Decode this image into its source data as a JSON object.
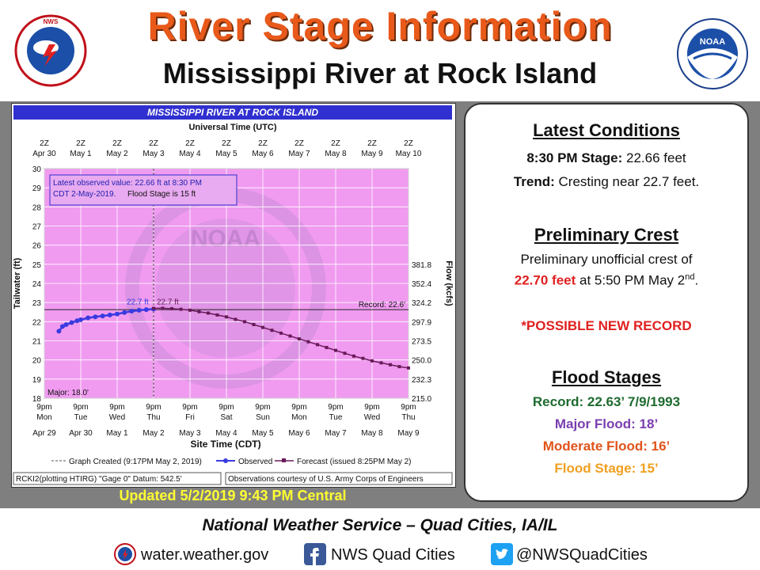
{
  "header": {
    "title": "River Stage Information",
    "subtitle": "Mississippi River at Rock Island",
    "nws_logo_text": "NATIONAL WEATHER SERVICE",
    "noaa_logo_text": "NOAA"
  },
  "updated": "Updated 5/2/2019 9:43 PM Central",
  "info": {
    "latest_heading": "Latest Conditions",
    "stage_label": "8:30 PM Stage:",
    "stage_value": "22.66 feet",
    "trend_label": "Trend:",
    "trend_value": "Cresting near 22.7 feet.",
    "crest_heading": "Preliminary Crest",
    "crest_line1": "Preliminary unofficial crest of",
    "crest_value": "22.70 feet",
    "crest_at": "at 5:50 PM May 2",
    "crest_sup": "nd",
    "crest_end": ".",
    "possible_record": "*POSSIBLE NEW RECORD",
    "flood_heading": "Flood Stages",
    "record": "Record: 22.63’  7/9/1993",
    "major": "Major Flood: 18’",
    "moderate": "Moderate Flood: 16’",
    "flood_stage": "Flood Stage:  15’",
    "colors": {
      "record": "#1e6b2f",
      "major": "#7b3fb0",
      "moderate": "#e0531a",
      "flood": "#f0a020",
      "crest": "#e02020"
    }
  },
  "footer": {
    "title": "National Weather Service – Quad Cities, IA/IL",
    "web": "water.weather.gov",
    "facebook": "NWS Quad Cities",
    "twitter": "@NWSQuadCities"
  },
  "chart_data": {
    "type": "line",
    "title": "MISSISSIPPI RIVER AT ROCK ISLAND",
    "top_axis_title": "Universal Time (UTC)",
    "top_ticks": [
      {
        "l1": "2Z",
        "l2": "Apr 30"
      },
      {
        "l1": "2Z",
        "l2": "May 1"
      },
      {
        "l1": "2Z",
        "l2": "May 2"
      },
      {
        "l1": "2Z",
        "l2": "May 3"
      },
      {
        "l1": "2Z",
        "l2": "May 4"
      },
      {
        "l1": "2Z",
        "l2": "May 5"
      },
      {
        "l1": "2Z",
        "l2": "May 6"
      },
      {
        "l1": "2Z",
        "l2": "May 7"
      },
      {
        "l1": "2Z",
        "l2": "May 8"
      },
      {
        "l1": "2Z",
        "l2": "May 9"
      },
      {
        "l1": "2Z",
        "l2": "May 10"
      }
    ],
    "bottom_ticks": [
      {
        "l1": "9pm",
        "l2": "Mon",
        "l3": "Apr 29"
      },
      {
        "l1": "9pm",
        "l2": "Tue",
        "l3": "Apr 30"
      },
      {
        "l1": "9pm",
        "l2": "Wed",
        "l3": "May 1"
      },
      {
        "l1": "9pm",
        "l2": "Thu",
        "l3": "May 2"
      },
      {
        "l1": "9pm",
        "l2": "Fri",
        "l3": "May 3"
      },
      {
        "l1": "9pm",
        "l2": "Sat",
        "l3": "May 4"
      },
      {
        "l1": "9pm",
        "l2": "Sun",
        "l3": "May 5"
      },
      {
        "l1": "9pm",
        "l2": "Mon",
        "l3": "May 6"
      },
      {
        "l1": "9pm",
        "l2": "Tue",
        "l3": "May 7"
      },
      {
        "l1": "9pm",
        "l2": "Wed",
        "l3": "May 8"
      },
      {
        "l1": "9pm",
        "l2": "Thu",
        "l3": "May 9"
      }
    ],
    "xlabel": "Site Time (CDT)",
    "ylabel": "Tailwater (ft)",
    "y2label": "Flow (kcfs)",
    "xlim": [
      0,
      10
    ],
    "ylim": [
      18,
      30
    ],
    "yticks": [
      18,
      19,
      20,
      21,
      22,
      23,
      24,
      25,
      26,
      27,
      28,
      29,
      30
    ],
    "flow_ticks": [
      {
        "stage": 18,
        "label": "215.0"
      },
      {
        "stage": 19,
        "label": "232.3"
      },
      {
        "stage": 20,
        "label": "250.0"
      },
      {
        "stage": 21,
        "label": "273.5"
      },
      {
        "stage": 22,
        "label": "297.9"
      },
      {
        "stage": 23,
        "label": "324.2"
      },
      {
        "stage": 24,
        "label": "352.4"
      },
      {
        "stage": 25,
        "label": "381.8"
      }
    ],
    "record_stage": 22.63,
    "record_label": "Record: 22.6'",
    "major_stage": 18.0,
    "major_label": "Major: 18.0'",
    "observed_note_line1": "Latest observed value: 22.66 ft at 8:30 PM",
    "observed_note_line2": "CDT 2-May-2019.",
    "observed_note_flood": "Flood Stage is 15 ft",
    "crest_labels": [
      "22.7 ft",
      "22.7 ft"
    ],
    "series": [
      {
        "name": "Observed",
        "color": "#3a3ae0",
        "x": [
          0.4,
          0.5,
          0.6,
          0.75,
          0.9,
          1.0,
          1.2,
          1.4,
          1.6,
          1.8,
          2.0,
          2.2,
          2.4,
          2.6,
          2.8,
          3.0
        ],
        "y": [
          21.5,
          21.75,
          21.85,
          21.95,
          22.05,
          22.1,
          22.2,
          22.25,
          22.3,
          22.35,
          22.4,
          22.48,
          22.55,
          22.6,
          22.63,
          22.66
        ]
      },
      {
        "name": "Forecast (issued 8:25PM May 2)",
        "color": "#6a1a5a",
        "x": [
          3.0,
          3.25,
          3.5,
          3.75,
          4.0,
          4.25,
          4.5,
          4.75,
          5.0,
          5.25,
          5.5,
          5.75,
          6.0,
          6.25,
          6.5,
          6.75,
          7.0,
          7.25,
          7.5,
          7.75,
          8.0,
          8.25,
          8.5,
          8.75,
          9.0,
          9.25,
          9.5,
          9.75,
          10.0
        ],
        "y": [
          22.7,
          22.7,
          22.68,
          22.65,
          22.6,
          22.52,
          22.45,
          22.35,
          22.25,
          22.12,
          22.0,
          21.85,
          21.7,
          21.55,
          21.4,
          21.25,
          21.1,
          20.95,
          20.8,
          20.65,
          20.5,
          20.35,
          20.2,
          20.08,
          19.95,
          19.85,
          19.75,
          19.65,
          19.58
        ]
      }
    ],
    "legend": {
      "created": "Graph Created (9:17PM May 2, 2019)",
      "observed": "Observed",
      "forecast": "Forecast (issued 8:25PM May 2)"
    },
    "footer_left": "RCKI2(plotting HTIRG) \"Gage 0\" Datum:  542.5'",
    "footer_right": "Observations courtesy of U.S. Army Corps of Engineers",
    "watermark": "NOAA",
    "colors": {
      "plot_bg": "#f09bf0",
      "title_bar": "#3030d0",
      "grid": "#ffffff",
      "record_line": "#222222"
    }
  }
}
